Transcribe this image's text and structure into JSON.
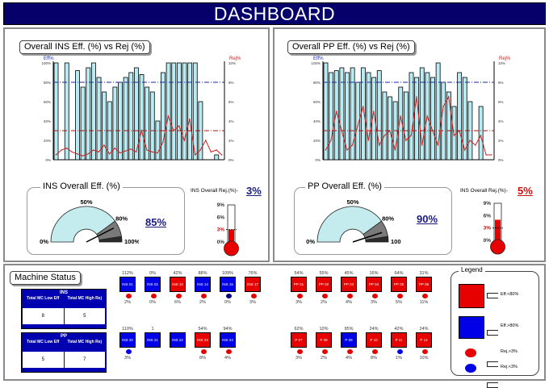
{
  "header": {
    "title": "DASHBOARD"
  },
  "colors": {
    "navy": "#06006a",
    "blue": "#0000e6",
    "red": "#e60000",
    "bar": "#b8ecf2",
    "gauge": "#c4ecef"
  },
  "left_panel": {
    "title": "Overall INS Eff. (%) vs Rej (%)",
    "chart_data": {
      "type": "bar",
      "title": "Overall INS Eff. (%) vs Rej (%)",
      "series": [
        {
          "name": "Eff%",
          "axis": "left",
          "values": [
            100,
            0,
            100,
            0,
            92,
            75,
            95,
            100,
            85,
            70,
            60,
            75,
            80,
            85,
            90,
            95,
            88,
            75,
            70,
            40,
            90,
            100,
            100,
            100,
            100,
            100,
            100,
            60,
            0,
            0,
            5,
            0
          ]
        },
        {
          "name": "Rej%",
          "axis": "right",
          "values": [
            0.5,
            1.0,
            1.2,
            0.8,
            0.6,
            0.4,
            0.6,
            1.0,
            0.8,
            1.5,
            0.6,
            1.2,
            0.7,
            0.9,
            1.1,
            0.8,
            3.0,
            1.0,
            0.8,
            0.7,
            1.8,
            4.5,
            3.0,
            3.5,
            2.0,
            4.2,
            0.5,
            1.0,
            2.0,
            0.8,
            1.0,
            0.5
          ]
        }
      ],
      "eff_axis_label": "Eff%",
      "rej_axis_label": "Rej%",
      "ylim_left": [
        0,
        100
      ],
      "ylim_right": [
        0,
        10
      ],
      "ticks_left": [
        "100%",
        "80%",
        "60%",
        "40%",
        "20%",
        "0%"
      ],
      "ticks_right": [
        "10%",
        "8%",
        "6%",
        "4%",
        "2%",
        "0%"
      ],
      "ref_eff": 80,
      "ref_rej": 3
    },
    "gauge": {
      "title": "INS Overall Eff. (%)",
      "value": 85,
      "value_label": "85%",
      "scale": [
        "0%",
        "50%",
        "80%",
        "100%"
      ]
    },
    "rej": {
      "label": "INS Overall Rej.(%)-",
      "value": 3,
      "value_label": "3%",
      "scale": [
        "9%",
        "6%",
        "3%",
        "0%"
      ]
    }
  },
  "right_panel": {
    "title": "Overall PP Eff. (%) vs Rej (%)",
    "chart_data": {
      "type": "bar",
      "title": "Overall PP Eff. (%) vs Rej (%)",
      "series": [
        {
          "name": "Eff%",
          "axis": "left",
          "values": [
            100,
            90,
            92,
            95,
            90,
            95,
            80,
            95,
            90,
            85,
            92,
            70,
            65,
            60,
            75,
            70,
            90,
            85,
            95,
            90,
            85,
            100,
            80,
            70,
            55,
            90,
            85,
            60,
            0,
            55,
            0,
            0
          ]
        },
        {
          "name": "Rej%",
          "axis": "right",
          "values": [
            1.0,
            2.0,
            5.0,
            3.0,
            1.0,
            1.5,
            3.5,
            5.5,
            2.0,
            5.0,
            1.5,
            2.5,
            3.0,
            1.0,
            4.5,
            2.0,
            2.5,
            6.5,
            1.5,
            4.5,
            3.0,
            1.5,
            5.5,
            6.5,
            2.5,
            3.0,
            1.0,
            2.0,
            1.5,
            2.5,
            0.5,
            0.5
          ]
        }
      ],
      "eff_axis_label": "Eff%",
      "rej_axis_label": "Rej%",
      "ylim_left": [
        0,
        100
      ],
      "ylim_right": [
        0,
        10
      ],
      "ticks_left": [
        "100%",
        "80%",
        "60%",
        "40%",
        "20%",
        "0%"
      ],
      "ticks_right": [
        "10%",
        "8%",
        "6%",
        "4%",
        "2%",
        "0%"
      ],
      "ref_eff": 80,
      "ref_rej": 3
    },
    "gauge": {
      "title": "PP Overall Eff. (%)",
      "value": 90,
      "value_label": "90%",
      "scale": [
        "0%",
        "50%",
        "80%",
        "100"
      ]
    },
    "rej": {
      "label": "INS Overall Rej.(%)-",
      "value": 5,
      "value_label": "5%",
      "scale": [
        "9%",
        "6%",
        "3%",
        "0%"
      ]
    }
  },
  "machine_status": {
    "title": "Machine Status",
    "ins": {
      "header": "INS",
      "cols": [
        "Total MC Low Eff",
        "Total MC High Rej"
      ],
      "values": [
        "8",
        "5"
      ]
    },
    "pp": {
      "header": "PP",
      "cols": [
        "Total MC Low Eff",
        "Total MC High Rej"
      ],
      "values": [
        "5",
        "7"
      ]
    },
    "ins_machines": [
      {
        "pct": "112%",
        "name": "INS 01",
        "color": "blue",
        "dot": "red",
        "rej": "2%"
      },
      {
        "pct": "0%",
        "name": "INS 02",
        "color": "blue",
        "dot": "red",
        "rej": "0%"
      },
      {
        "pct": "42%",
        "name": "INS 10",
        "color": "red",
        "dot": "red",
        "rej": "6%"
      },
      {
        "pct": "88%",
        "name": "INS 14",
        "color": "blue",
        "dot": "red",
        "rej": "2%"
      },
      {
        "pct": "109%",
        "name": "INS 15",
        "color": "blue",
        "dot": "navy",
        "rej": "0%"
      },
      {
        "pct": "76%",
        "name": "INS 17",
        "color": "red",
        "dot": "red",
        "rej": "3%"
      },
      {
        "pct": "110%",
        "name": "INS 20",
        "color": "blue",
        "dot": "blue",
        "rej": "3%"
      },
      {
        "pct": "1",
        "name": "INS 21",
        "color": "blue",
        "dot": "none",
        "rej": ""
      },
      {
        "pct": "",
        "name": "INS 22",
        "color": "blue",
        "dot": "none",
        "rej": ""
      },
      {
        "pct": "54%",
        "name": "INS 23",
        "color": "red",
        "dot": "red",
        "rej": "8%"
      },
      {
        "pct": "94%",
        "name": "INS 24",
        "color": "blue",
        "dot": "red",
        "rej": "4%"
      }
    ],
    "pp_machines": [
      {
        "pct": "54%",
        "name": "PP 01",
        "color": "red",
        "dot": "red",
        "rej": "3%"
      },
      {
        "pct": "55%",
        "name": "PP 02",
        "color": "red",
        "dot": "red",
        "rej": "2%"
      },
      {
        "pct": "45%",
        "name": "PP 03",
        "color": "red",
        "dot": "red",
        "rej": "4%"
      },
      {
        "pct": "16%",
        "name": "PP 04",
        "color": "red",
        "dot": "red",
        "rej": "3%"
      },
      {
        "pct": "64%",
        "name": "PP 05",
        "color": "red",
        "dot": "red",
        "rej": "5%"
      },
      {
        "pct": "31%",
        "name": "PP 06",
        "color": "red",
        "dot": "red",
        "rej": "11%"
      },
      {
        "pct": "62%",
        "name": "P 07",
        "color": "red",
        "dot": "red",
        "rej": "3%"
      },
      {
        "pct": "10%",
        "name": "P 08",
        "color": "red",
        "dot": "red",
        "rej": "2%"
      },
      {
        "pct": "95%",
        "name": "P 09",
        "color": "blue",
        "dot": "red",
        "rej": "4%"
      },
      {
        "pct": "24%",
        "name": "P 10",
        "color": "red",
        "dot": "red",
        "rej": "8%"
      },
      {
        "pct": "42%",
        "name": "P 11",
        "color": "red",
        "dot": "blue",
        "rej": "1%"
      },
      {
        "pct": "24%",
        "name": "P 12",
        "color": "red",
        "dot": "red",
        "rej": "10%"
      }
    ],
    "legend": {
      "title": "Legend",
      "items": [
        "Eff.<80%",
        "Eff.>80%",
        "Rej.>3%",
        "Rej.<3%"
      ]
    }
  }
}
